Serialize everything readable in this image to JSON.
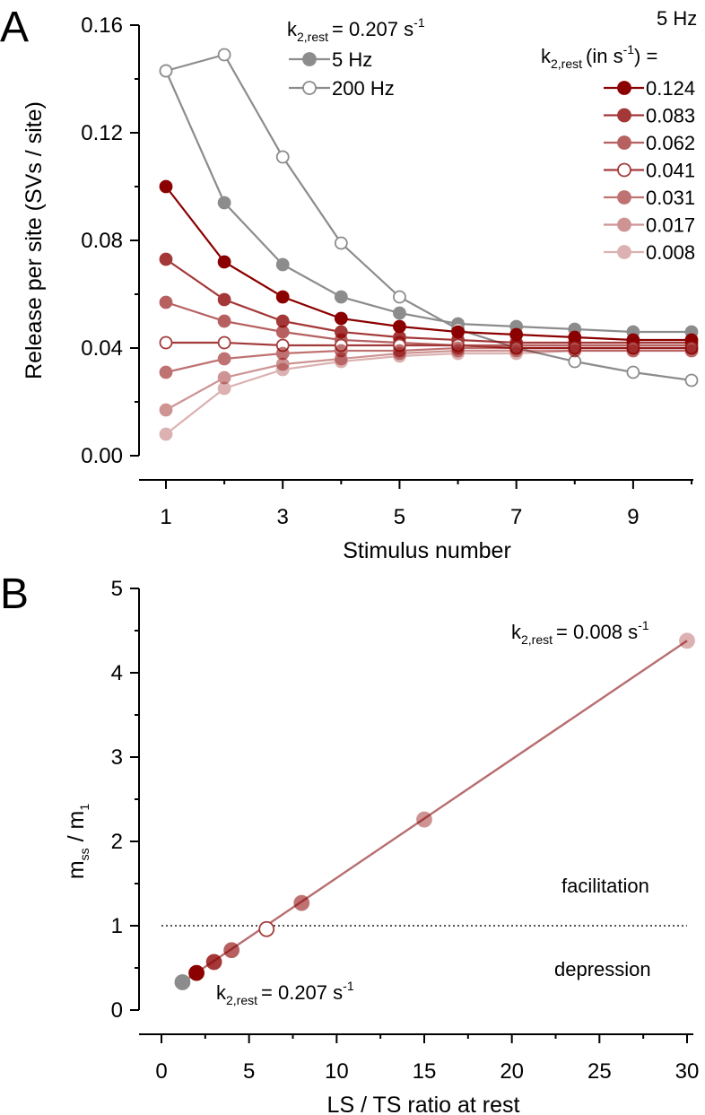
{
  "chart_data": [
    {
      "panel": "A",
      "type": "line",
      "xlabel": "Stimulus number",
      "ylabel": "Release per site (SVs / site)",
      "xlim": [
        1,
        10
      ],
      "ylim": [
        0,
        0.16
      ],
      "xticks": [
        1,
        3,
        5,
        7,
        9
      ],
      "xtick_labels": [
        "1",
        "3",
        "5",
        "7",
        "9"
      ],
      "yticks": [
        0,
        0.04,
        0.08,
        0.12,
        0.16
      ],
      "ytick_labels": [
        "0.00",
        "0.04",
        "0.08",
        "0.12",
        "0.16"
      ],
      "x": [
        1,
        2,
        3,
        4,
        5,
        6,
        7,
        8,
        9,
        10
      ],
      "legend_gray": {
        "k_label": "k",
        "k_sub": "2,rest",
        "k_eq": "= 0.207 s",
        "k_sup": "-1",
        "entries": [
          "5 Hz",
          "200 Hz"
        ]
      },
      "legend_red": {
        "freq": "5 Hz",
        "k_label": "k",
        "k_sub": "2,rest",
        "unit_text": "(in s",
        "unit_sup": "-1",
        "unit_close": ")  =",
        "entries": [
          "0.124",
          "0.083",
          "0.062",
          "0.041",
          "0.031",
          "0.017",
          "0.008"
        ]
      },
      "series": [
        {
          "group": "gray",
          "key": "5 Hz",
          "color": "#8c8c8c",
          "filled": true,
          "opacity": 1,
          "values": [
            0.143,
            0.094,
            0.071,
            0.059,
            0.053,
            0.049,
            0.048,
            0.047,
            0.046,
            0.046
          ]
        },
        {
          "group": "gray",
          "key": "200 Hz",
          "color": "#8c8c8c",
          "filled": false,
          "opacity": 1,
          "values": [
            0.143,
            0.149,
            0.111,
            0.079,
            0.059,
            0.047,
            0.04,
            0.035,
            0.031,
            0.028
          ]
        },
        {
          "group": "red",
          "key": "0.124",
          "color": "#8b0000",
          "filled": true,
          "opacity": 1,
          "values": [
            0.1,
            0.072,
            0.059,
            0.051,
            0.048,
            0.046,
            0.045,
            0.044,
            0.043,
            0.043
          ]
        },
        {
          "group": "red",
          "key": "0.083",
          "color": "#8b0000",
          "filled": true,
          "opacity": 0.78,
          "values": [
            0.073,
            0.058,
            0.05,
            0.046,
            0.044,
            0.043,
            0.042,
            0.042,
            0.042,
            0.042
          ]
        },
        {
          "group": "red",
          "key": "0.062",
          "color": "#8b0000",
          "filled": true,
          "opacity": 0.62,
          "values": [
            0.057,
            0.05,
            0.046,
            0.043,
            0.042,
            0.041,
            0.041,
            0.041,
            0.041,
            0.041
          ]
        },
        {
          "group": "red",
          "key": "0.041",
          "color": "#a33a3a",
          "filled": false,
          "opacity": 1,
          "values": [
            0.042,
            0.042,
            0.041,
            0.041,
            0.041,
            0.041,
            0.04,
            0.04,
            0.04,
            0.04
          ]
        },
        {
          "group": "red",
          "key": "0.031",
          "color": "#8b0000",
          "filled": true,
          "opacity": 0.55,
          "values": [
            0.031,
            0.036,
            0.038,
            0.039,
            0.039,
            0.04,
            0.04,
            0.04,
            0.04,
            0.04
          ]
        },
        {
          "group": "red",
          "key": "0.017",
          "color": "#8b0000",
          "filled": true,
          "opacity": 0.42,
          "values": [
            0.017,
            0.029,
            0.034,
            0.036,
            0.038,
            0.039,
            0.039,
            0.039,
            0.039,
            0.039
          ]
        },
        {
          "group": "red",
          "key": "0.008",
          "color": "#8b0000",
          "filled": true,
          "opacity": 0.3,
          "values": [
            0.008,
            0.025,
            0.032,
            0.035,
            0.037,
            0.038,
            0.038,
            0.039,
            0.039,
            0.039
          ]
        }
      ]
    },
    {
      "panel": "B",
      "type": "scatter",
      "xlabel": "LS / TS ratio at rest",
      "ylabel_main": "m",
      "ylabel_sub1": "ss",
      "ylabel_mid": " / m",
      "ylabel_sub2": "1",
      "xlim": [
        0,
        30
      ],
      "ylim": [
        0,
        5
      ],
      "xticks": [
        0,
        5,
        10,
        15,
        20,
        25,
        30
      ],
      "xtick_labels": [
        "0",
        "5",
        "10",
        "15",
        "20",
        "25",
        "30"
      ],
      "yticks": [
        0,
        1,
        2,
        3,
        4,
        5
      ],
      "ytick_labels": [
        "0",
        "1",
        "2",
        "3",
        "4",
        "5"
      ],
      "reference_line": {
        "y": 1,
        "style": "dotted"
      },
      "fit_line": {
        "x": [
          1.2,
          30
        ],
        "y": [
          0.33,
          4.38
        ]
      },
      "points": [
        {
          "x": 1.2,
          "y": 0.33,
          "color": "#8c8c8c",
          "filled": true,
          "opacity": 1
        },
        {
          "x": 2.0,
          "y": 0.44,
          "color": "#8b0000",
          "filled": true,
          "opacity": 1
        },
        {
          "x": 3.0,
          "y": 0.57,
          "color": "#8b0000",
          "filled": true,
          "opacity": 0.78
        },
        {
          "x": 4.0,
          "y": 0.71,
          "color": "#8b0000",
          "filled": true,
          "opacity": 0.62
        },
        {
          "x": 6.0,
          "y": 0.96,
          "color": "#a33a3a",
          "filled": false,
          "opacity": 1
        },
        {
          "x": 8.0,
          "y": 1.27,
          "color": "#8b0000",
          "filled": true,
          "opacity": 0.55
        },
        {
          "x": 15.0,
          "y": 2.26,
          "color": "#8b0000",
          "filled": true,
          "opacity": 0.42
        },
        {
          "x": 30.0,
          "y": 4.38,
          "color": "#8b0000",
          "filled": true,
          "opacity": 0.3
        }
      ],
      "annotations": {
        "top": {
          "k": "k",
          "sub": "2,rest",
          "eq": "= 0.008 s",
          "sup": "-1"
        },
        "bottom": {
          "k": "k",
          "sub": "2,rest",
          "eq": "= 0.207 s",
          "sup": "-1"
        },
        "facilitation": "facilitation",
        "depression": "depression"
      }
    }
  ],
  "labels": {
    "panel_a": "A",
    "panel_b": "B"
  }
}
